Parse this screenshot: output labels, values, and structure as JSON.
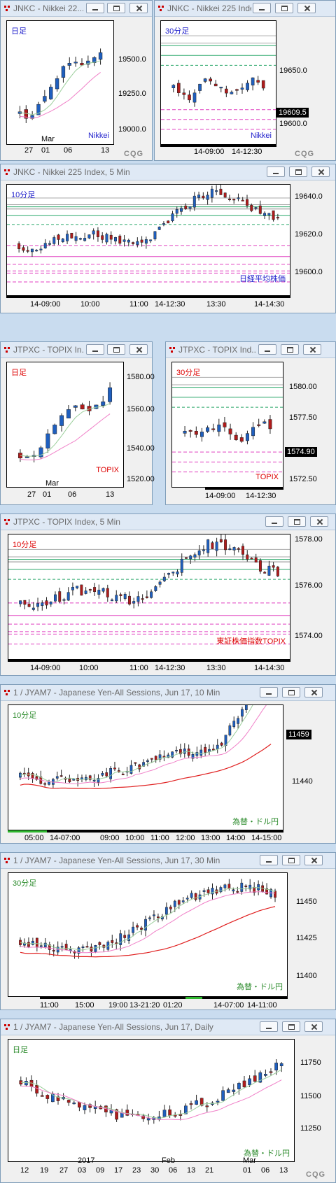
{
  "colors": {
    "up": "#1f5fbf",
    "down": "#b01c1c",
    "green_text": "#2a8a2a",
    "red_text": "#d00",
    "blue_text": "#2222cc"
  },
  "windows": [
    {
      "title": "JNKC - Nikkei 22...",
      "tf": "日足",
      "tf_color": "blue",
      "name": "Nikkei",
      "name_color": "blue",
      "y_labels": [
        "19500.0",
        "19250.0",
        "19000.0"
      ],
      "x_labels": [
        "27",
        "01",
        "06",
        "13"
      ],
      "x_month": "Mar",
      "show_cqg": true
    },
    {
      "title": "JNKC - Nikkei 225 Index",
      "tf": "30分足",
      "tf_color": "blue",
      "name": "Nikkei",
      "name_color": "blue",
      "y_labels": [
        "19650.0",
        "19600.0"
      ],
      "current": "19609.5",
      "x_labels": [
        "14-09:00",
        "14-12:30"
      ],
      "show_cqg": true
    },
    {
      "title": "JNKC - Nikkei 225 Index, 5 Min",
      "tf": "10分足",
      "tf_color": "blue",
      "name": "日経平均株価",
      "name_color": "blue",
      "y_labels": [
        "19640.0",
        "19620.0",
        "19600.0"
      ],
      "x_labels": [
        "14-09:00",
        "10:00",
        "11:00",
        "14-12:30",
        "13:30",
        "14-14:30"
      ]
    },
    {
      "title": "JTPXC - TOPIX In...",
      "tf": "日足",
      "tf_color": "red",
      "name": "TOPIX",
      "name_color": "red",
      "y_labels": [
        "1580.00",
        "1560.00",
        "1540.00",
        "1520.00"
      ],
      "x_labels": [
        "27",
        "01",
        "06",
        "13"
      ],
      "x_month": "Mar"
    },
    {
      "title": "JTPXC - TOPIX Ind...",
      "tf": "30分足",
      "tf_color": "red",
      "name": "TOPIX",
      "name_color": "red",
      "y_labels": [
        "1580.00",
        "1577.50",
        "1572.50"
      ],
      "current": "1574.90",
      "x_labels": [
        "14-09:00",
        "14-12:30"
      ]
    },
    {
      "title": "JTPXC - TOPIX Index, 5 Min",
      "tf": "10分足",
      "tf_color": "red",
      "name": "東証株価指数TOPIX",
      "name_color": "red",
      "y_labels": [
        "1578.00",
        "1576.00",
        "1574.00"
      ],
      "x_labels": [
        "14-09:00",
        "10:00",
        "11:00",
        "14-12:30",
        "13:30",
        "14-14:30"
      ]
    },
    {
      "title": "1 / JYAM7 - Japanese Yen-All Sessions, Jun 17, 10 Min",
      "tf": "10分足",
      "tf_color": "green",
      "name": "為替・ドル円",
      "name_color": "green",
      "y_labels": [
        "11440"
      ],
      "current": "11459",
      "x_labels": [
        "05:00",
        "14-07:00",
        "09:00",
        "10:00",
        "11:00",
        "12:00",
        "13:00",
        "14:00",
        "14-15:00"
      ]
    },
    {
      "title": "1 / JYAM7 - Japanese Yen-All Sessions, Jun 17, 30 Min",
      "tf": "30分足",
      "tf_color": "green",
      "name": "為替・ドル円",
      "name_color": "green",
      "y_labels": [
        "11450",
        "11425",
        "11400"
      ],
      "x_labels": [
        "11:00",
        "15:00",
        "19:00",
        "13-21:20",
        "01:20",
        "14-07:00",
        "14-11:00"
      ]
    },
    {
      "title": "1 / JYAM7 - Japanese Yen-All Sessions, Jun 17, Daily",
      "tf": "日足",
      "tf_color": "green",
      "name": "為替・ドル円",
      "name_color": "green",
      "y_labels": [
        "11750",
        "11500",
        "11250"
      ],
      "x_labels": [
        "12",
        "19",
        "27",
        "03",
        "09",
        "17",
        "23",
        "30",
        "06",
        "13",
        "21",
        "01",
        "06",
        "13"
      ],
      "x_year": "2017",
      "x_months": [
        "Feb",
        "Mar"
      ],
      "show_cqg": true
    }
  ],
  "cqg_label": "CQG"
}
